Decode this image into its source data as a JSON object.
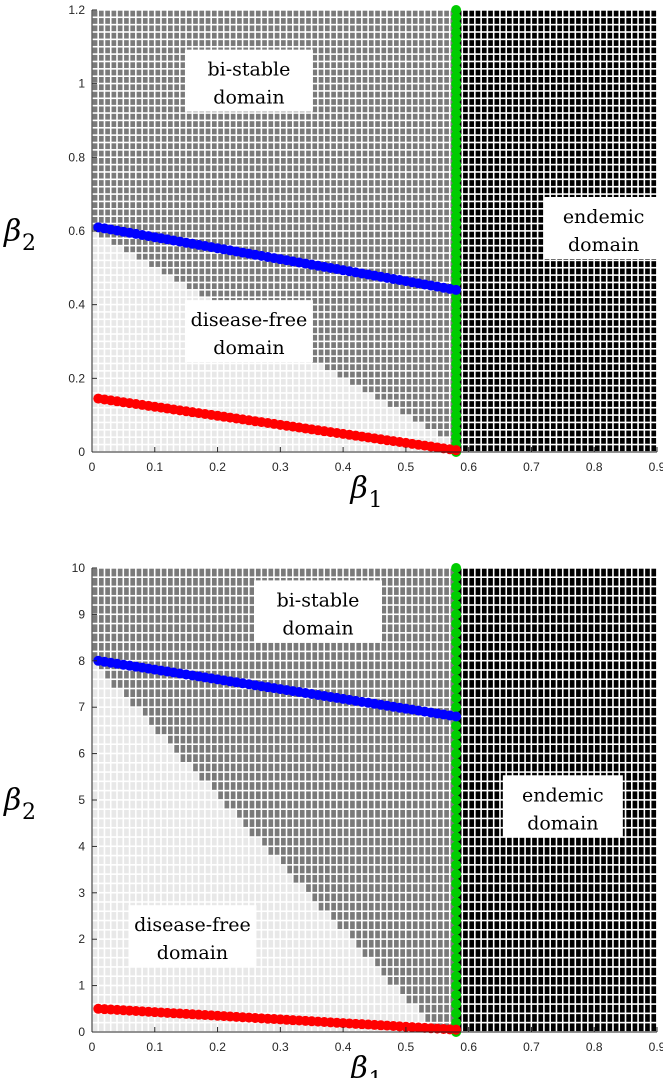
{
  "chart_data": [
    {
      "type": "scatter",
      "title": "",
      "xlabel": {
        "symbol": "β",
        "sub": "1"
      },
      "ylabel": {
        "symbol": "β",
        "sub": "2"
      },
      "xlim": [
        0,
        0.9
      ],
      "ylim": [
        0,
        1.2
      ],
      "xticks": [
        "0",
        "0.1",
        "0.2",
        "0.3",
        "0.4",
        "0.5",
        "0.6",
        "0.7",
        "0.8",
        "0.9"
      ],
      "yticks": [
        "0",
        "0.2",
        "0.4",
        "0.6",
        "0.8",
        "1",
        "1.2"
      ],
      "grid_spacing": {
        "x": 0.01,
        "y": 0.02
      },
      "threshold_beta1": 0.58,
      "region_colors": {
        "disease_free": "#e8e8e8",
        "bistable": "#7a7a7a",
        "endemic": "#000000"
      },
      "regions": [
        {
          "text": [
            "bi-stable",
            "domain"
          ],
          "at": [
            0.25,
            1.0
          ]
        },
        {
          "text": [
            "disease-free",
            "domain"
          ],
          "at": [
            0.25,
            0.32
          ]
        },
        {
          "text": [
            "endemic",
            "domain"
          ],
          "at": [
            0.815,
            0.6
          ]
        }
      ],
      "series": [
        {
          "color": "#0000ff",
          "points": [
            [
              0.01,
              0.61
            ],
            [
              0.58,
              0.44
            ]
          ]
        },
        {
          "color": "#ff0000",
          "points": [
            [
              0.01,
              0.145
            ],
            [
              0.58,
              0.005
            ]
          ]
        },
        {
          "color": "#00cc00",
          "vertical_at": 0.58,
          "y_range": [
            0,
            1.2
          ]
        }
      ],
      "diagonal_boundary": [
        [
          0.0,
          0.6
        ],
        [
          0.6,
          0.0
        ]
      ]
    },
    {
      "type": "scatter",
      "title": "",
      "xlabel": {
        "symbol": "β",
        "sub": "1"
      },
      "ylabel": {
        "symbol": "β",
        "sub": "2"
      },
      "xlim": [
        0,
        0.9
      ],
      "ylim": [
        0,
        10
      ],
      "xticks": [
        "0",
        "0.1",
        "0.2",
        "0.3",
        "0.4",
        "0.5",
        "0.6",
        "0.7",
        "0.8",
        "0.9"
      ],
      "yticks": [
        "0",
        "1",
        "2",
        "3",
        "4",
        "5",
        "6",
        "7",
        "8",
        "9",
        "10"
      ],
      "grid_spacing": {
        "x": 0.01,
        "y": 0.2
      },
      "threshold_beta1": 0.58,
      "region_colors": {
        "disease_free": "#e8e8e8",
        "bistable": "#7a7a7a",
        "endemic": "#000000"
      },
      "regions": [
        {
          "text": [
            "bi-stable",
            "domain"
          ],
          "at": [
            0.36,
            9.0
          ]
        },
        {
          "text": [
            "disease-free",
            "domain"
          ],
          "at": [
            0.16,
            2.0
          ]
        },
        {
          "text": [
            "endemic",
            "domain"
          ],
          "at": [
            0.75,
            4.8
          ]
        }
      ],
      "series": [
        {
          "color": "#0000ff",
          "points": [
            [
              0.01,
              8.0
            ],
            [
              0.58,
              6.8
            ]
          ]
        },
        {
          "color": "#ff0000",
          "points": [
            [
              0.01,
              0.5
            ],
            [
              0.58,
              0.05
            ]
          ]
        },
        {
          "color": "#00cc00",
          "vertical_at": 0.58,
          "y_range": [
            0,
            10
          ]
        }
      ],
      "diagonal_boundary": [
        [
          0.0,
          8.0
        ],
        [
          0.55,
          0.0
        ]
      ]
    }
  ]
}
